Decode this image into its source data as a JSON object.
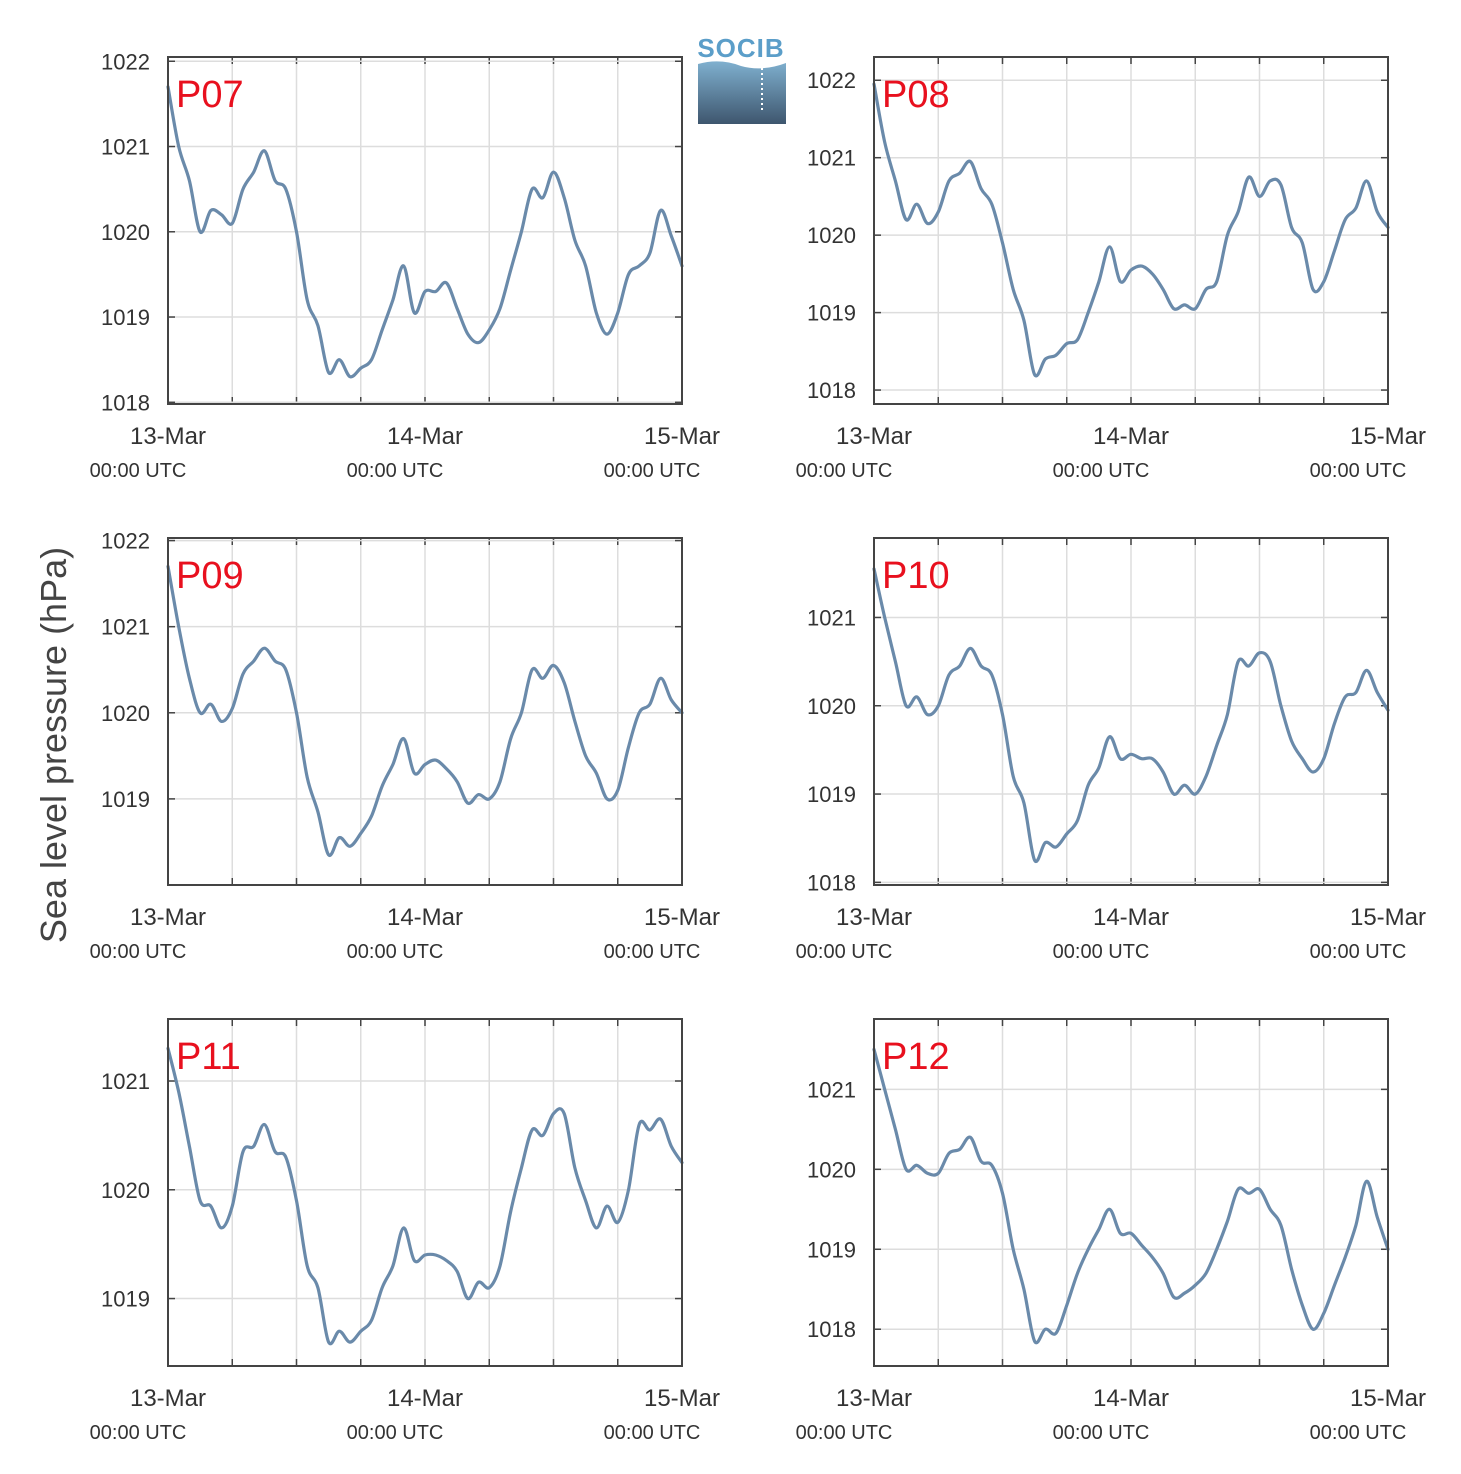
{
  "figure": {
    "ylabel": "Sea level pressure (hPa)",
    "logo_text": "SOCIB"
  },
  "colors": {
    "line": "#6a8aaa",
    "panel_label": "#e8101e",
    "grid": "#dddddd",
    "axis": "#444444",
    "logo_text": "#5b9ec9",
    "logo_top": "#7fb0cf",
    "logo_bottom": "#3e566e"
  },
  "chart_data": [
    {
      "type": "line",
      "label": "P07",
      "x_ticks": [
        {
          "x": 0,
          "date": "13-Mar",
          "time": "00:00 UTC"
        },
        {
          "x": 24,
          "date": "14-Mar",
          "time": "00:00 UTC"
        },
        {
          "x": 48,
          "date": "15-Mar",
          "time": "00:00 UTC"
        }
      ],
      "xlim": [
        0,
        48
      ],
      "ylim": [
        1017.98,
        1022.05
      ],
      "yticks": [
        1018,
        1019,
        1020,
        1021,
        1022
      ],
      "x": [
        0,
        1,
        2,
        3,
        4,
        5,
        6,
        7,
        8,
        9,
        10,
        11,
        12,
        13,
        14,
        15,
        16,
        17,
        18,
        19,
        20,
        21,
        22,
        23,
        24,
        25,
        26,
        27,
        28,
        29,
        30,
        31,
        32,
        33,
        34,
        35,
        36,
        37,
        38,
        39,
        40,
        41,
        42,
        43,
        44,
        45,
        46,
        47,
        48
      ],
      "values": [
        1021.7,
        1021.0,
        1020.6,
        1020.0,
        1020.25,
        1020.2,
        1020.1,
        1020.5,
        1020.7,
        1020.95,
        1020.6,
        1020.5,
        1020.0,
        1019.2,
        1018.9,
        1018.35,
        1018.5,
        1018.3,
        1018.4,
        1018.5,
        1018.85,
        1019.2,
        1019.6,
        1019.05,
        1019.3,
        1019.3,
        1019.4,
        1019.1,
        1018.8,
        1018.7,
        1018.85,
        1019.1,
        1019.55,
        1020.0,
        1020.5,
        1020.4,
        1020.7,
        1020.4,
        1019.9,
        1019.6,
        1019.05,
        1018.8,
        1019.05,
        1019.5,
        1019.6,
        1019.75,
        1020.25,
        1019.95,
        1019.6
      ]
    },
    {
      "type": "line",
      "label": "P08",
      "x_ticks": [
        {
          "x": 0,
          "date": "13-Mar",
          "time": "00:00 UTC"
        },
        {
          "x": 24,
          "date": "14-Mar",
          "time": "00:00 UTC"
        },
        {
          "x": 48,
          "date": "15-Mar",
          "time": "00:00 UTC"
        }
      ],
      "xlim": [
        0,
        48
      ],
      "ylim": [
        1017.82,
        1022.3
      ],
      "yticks": [
        1018,
        1019,
        1020,
        1021,
        1022
      ],
      "x": [
        0,
        1,
        2,
        3,
        4,
        5,
        6,
        7,
        8,
        9,
        10,
        11,
        12,
        13,
        14,
        15,
        16,
        17,
        18,
        19,
        20,
        21,
        22,
        23,
        24,
        25,
        26,
        27,
        28,
        29,
        30,
        31,
        32,
        33,
        34,
        35,
        36,
        37,
        38,
        39,
        40,
        41,
        42,
        43,
        44,
        45,
        46,
        47,
        48
      ],
      "values": [
        1021.95,
        1021.2,
        1020.7,
        1020.2,
        1020.4,
        1020.15,
        1020.3,
        1020.7,
        1020.8,
        1020.95,
        1020.6,
        1020.4,
        1019.9,
        1019.3,
        1018.9,
        1018.2,
        1018.4,
        1018.45,
        1018.6,
        1018.65,
        1019.0,
        1019.4,
        1019.85,
        1019.4,
        1019.55,
        1019.6,
        1019.5,
        1019.3,
        1019.05,
        1019.1,
        1019.05,
        1019.3,
        1019.4,
        1020.0,
        1020.3,
        1020.75,
        1020.5,
        1020.7,
        1020.65,
        1020.1,
        1019.9,
        1019.3,
        1019.4,
        1019.8,
        1020.2,
        1020.35,
        1020.7,
        1020.3,
        1020.1
      ]
    },
    {
      "type": "line",
      "label": "P09",
      "x_ticks": [
        {
          "x": 0,
          "date": "13-Mar",
          "time": "00:00 UTC"
        },
        {
          "x": 24,
          "date": "14-Mar",
          "time": "00:00 UTC"
        },
        {
          "x": 48,
          "date": "15-Mar",
          "time": "00:00 UTC"
        }
      ],
      "xlim": [
        0,
        48
      ],
      "ylim": [
        1018.0,
        1022.03
      ],
      "yticks": [
        1019,
        1020,
        1021,
        1022
      ],
      "x": [
        0,
        1,
        2,
        3,
        4,
        5,
        6,
        7,
        8,
        9,
        10,
        11,
        12,
        13,
        14,
        15,
        16,
        17,
        18,
        19,
        20,
        21,
        22,
        23,
        24,
        25,
        26,
        27,
        28,
        29,
        30,
        31,
        32,
        33,
        34,
        35,
        36,
        37,
        38,
        39,
        40,
        41,
        42,
        43,
        44,
        45,
        46,
        47,
        48
      ],
      "values": [
        1021.7,
        1021.0,
        1020.4,
        1020.0,
        1020.1,
        1019.9,
        1020.05,
        1020.45,
        1020.6,
        1020.75,
        1020.6,
        1020.5,
        1020.0,
        1019.25,
        1018.85,
        1018.35,
        1018.55,
        1018.45,
        1018.6,
        1018.8,
        1019.15,
        1019.4,
        1019.7,
        1019.3,
        1019.4,
        1019.45,
        1019.35,
        1019.2,
        1018.95,
        1019.05,
        1019.0,
        1019.2,
        1019.7,
        1020.0,
        1020.5,
        1020.4,
        1020.55,
        1020.35,
        1019.9,
        1019.5,
        1019.3,
        1019.0,
        1019.1,
        1019.6,
        1020.0,
        1020.1,
        1020.4,
        1020.15,
        1020.0
      ]
    },
    {
      "type": "line",
      "label": "P10",
      "x_ticks": [
        {
          "x": 0,
          "date": "13-Mar",
          "time": "00:00 UTC"
        },
        {
          "x": 24,
          "date": "14-Mar",
          "time": "00:00 UTC"
        },
        {
          "x": 48,
          "date": "15-Mar",
          "time": "00:00 UTC"
        }
      ],
      "xlim": [
        0,
        48
      ],
      "ylim": [
        1017.97,
        1021.9
      ],
      "yticks": [
        1018,
        1019,
        1020,
        1021
      ],
      "x": [
        0,
        1,
        2,
        3,
        4,
        5,
        6,
        7,
        8,
        9,
        10,
        11,
        12,
        13,
        14,
        15,
        16,
        17,
        18,
        19,
        20,
        21,
        22,
        23,
        24,
        25,
        26,
        27,
        28,
        29,
        30,
        31,
        32,
        33,
        34,
        35,
        36,
        37,
        38,
        39,
        40,
        41,
        42,
        43,
        44,
        45,
        46,
        47,
        48
      ],
      "values": [
        1021.55,
        1021.0,
        1020.5,
        1020.0,
        1020.1,
        1019.9,
        1020.0,
        1020.35,
        1020.45,
        1020.65,
        1020.45,
        1020.35,
        1019.9,
        1019.2,
        1018.9,
        1018.25,
        1018.45,
        1018.4,
        1018.55,
        1018.7,
        1019.1,
        1019.3,
        1019.65,
        1019.4,
        1019.45,
        1019.4,
        1019.4,
        1019.25,
        1019.0,
        1019.1,
        1019.0,
        1019.2,
        1019.55,
        1019.9,
        1020.5,
        1020.45,
        1020.6,
        1020.5,
        1020.0,
        1019.6,
        1019.4,
        1019.25,
        1019.4,
        1019.8,
        1020.1,
        1020.15,
        1020.4,
        1020.15,
        1019.95
      ]
    },
    {
      "type": "line",
      "label": "P11",
      "x_ticks": [
        {
          "x": 0,
          "date": "13-Mar",
          "time": "00:00 UTC"
        },
        {
          "x": 24,
          "date": "14-Mar",
          "time": "00:00 UTC"
        },
        {
          "x": 48,
          "date": "15-Mar",
          "time": "00:00 UTC"
        }
      ],
      "xlim": [
        0,
        48
      ],
      "ylim": [
        1018.38,
        1021.57
      ],
      "yticks": [
        1019,
        1020,
        1021
      ],
      "x": [
        0,
        1,
        2,
        3,
        4,
        5,
        6,
        7,
        8,
        9,
        10,
        11,
        12,
        13,
        14,
        15,
        16,
        17,
        18,
        19,
        20,
        21,
        22,
        23,
        24,
        25,
        26,
        27,
        28,
        29,
        30,
        31,
        32,
        33,
        34,
        35,
        36,
        37,
        38,
        39,
        40,
        41,
        42,
        43,
        44,
        45,
        46,
        47,
        48
      ],
      "values": [
        1021.3,
        1020.9,
        1020.4,
        1019.9,
        1019.85,
        1019.65,
        1019.85,
        1020.35,
        1020.4,
        1020.6,
        1020.35,
        1020.3,
        1019.9,
        1019.3,
        1019.1,
        1018.6,
        1018.7,
        1018.6,
        1018.7,
        1018.8,
        1019.1,
        1019.3,
        1019.65,
        1019.35,
        1019.4,
        1019.4,
        1019.35,
        1019.25,
        1019.0,
        1019.15,
        1019.1,
        1019.3,
        1019.8,
        1020.2,
        1020.55,
        1020.5,
        1020.7,
        1020.7,
        1020.2,
        1019.9,
        1019.65,
        1019.85,
        1019.7,
        1020.0,
        1020.6,
        1020.55,
        1020.65,
        1020.4,
        1020.25
      ]
    },
    {
      "type": "line",
      "label": "P12",
      "x_ticks": [
        {
          "x": 0,
          "date": "13-Mar",
          "time": "00:00 UTC"
        },
        {
          "x": 24,
          "date": "14-Mar",
          "time": "00:00 UTC"
        },
        {
          "x": 48,
          "date": "15-Mar",
          "time": "00:00 UTC"
        }
      ],
      "xlim": [
        0,
        48
      ],
      "ylim": [
        1017.54,
        1021.88
      ],
      "yticks": [
        1018,
        1019,
        1020,
        1021
      ],
      "x": [
        0,
        1,
        2,
        3,
        4,
        5,
        6,
        7,
        8,
        9,
        10,
        11,
        12,
        13,
        14,
        15,
        16,
        17,
        18,
        19,
        20,
        21,
        22,
        23,
        24,
        25,
        26,
        27,
        28,
        29,
        30,
        31,
        32,
        33,
        34,
        35,
        36,
        37,
        38,
        39,
        40,
        41,
        42,
        43,
        44,
        45,
        46,
        47,
        48
      ],
      "values": [
        1021.5,
        1021.0,
        1020.5,
        1020.0,
        1020.05,
        1019.95,
        1019.95,
        1020.2,
        1020.25,
        1020.4,
        1020.1,
        1020.05,
        1019.7,
        1019.0,
        1018.5,
        1017.85,
        1018.0,
        1017.95,
        1018.3,
        1018.7,
        1019.0,
        1019.25,
        1019.5,
        1019.2,
        1019.2,
        1019.05,
        1018.9,
        1018.7,
        1018.4,
        1018.45,
        1018.55,
        1018.7,
        1019.0,
        1019.35,
        1019.75,
        1019.7,
        1019.75,
        1019.5,
        1019.3,
        1018.75,
        1018.3,
        1018.0,
        1018.2,
        1018.55,
        1018.9,
        1019.3,
        1019.85,
        1019.4,
        1019.0
      ]
    }
  ]
}
